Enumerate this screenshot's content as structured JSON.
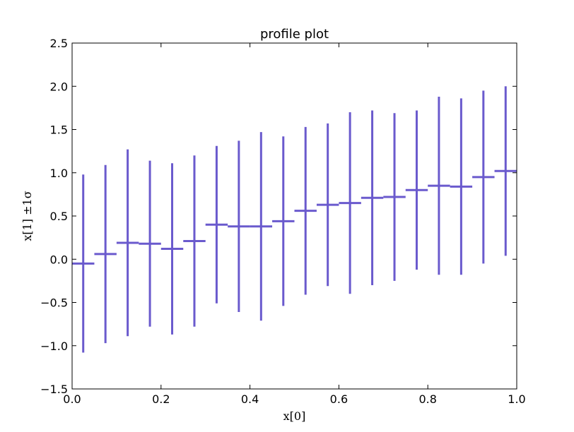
{
  "chart_data": {
    "type": "errorbar",
    "title": "profile plot",
    "xlabel": "x[0]",
    "ylabel": "x[1] ±1σ",
    "xlim": [
      0.0,
      1.0
    ],
    "ylim": [
      -1.5,
      2.5
    ],
    "xticks": [
      "0.0",
      "0.2",
      "0.4",
      "0.6",
      "0.8",
      "1.0"
    ],
    "yticks": [
      "−1.5",
      "−1.0",
      "−0.5",
      "0.0",
      "0.5",
      "1.0",
      "1.5",
      "2.0",
      "2.5"
    ],
    "grid": false,
    "legend": null,
    "color": "#6a5acd",
    "bin_width": 0.05,
    "points": [
      {
        "x": 0.025,
        "y": -0.05,
        "err": 1.03
      },
      {
        "x": 0.075,
        "y": 0.06,
        "err": 1.03
      },
      {
        "x": 0.125,
        "y": 0.19,
        "err": 1.08
      },
      {
        "x": 0.175,
        "y": 0.18,
        "err": 0.96
      },
      {
        "x": 0.225,
        "y": 0.12,
        "err": 0.99
      },
      {
        "x": 0.275,
        "y": 0.21,
        "err": 0.99
      },
      {
        "x": 0.325,
        "y": 0.4,
        "err": 0.91
      },
      {
        "x": 0.375,
        "y": 0.38,
        "err": 0.99
      },
      {
        "x": 0.425,
        "y": 0.38,
        "err": 1.09
      },
      {
        "x": 0.475,
        "y": 0.44,
        "err": 0.98
      },
      {
        "x": 0.525,
        "y": 0.56,
        "err": 0.97
      },
      {
        "x": 0.575,
        "y": 0.63,
        "err": 0.94
      },
      {
        "x": 0.625,
        "y": 0.65,
        "err": 1.05
      },
      {
        "x": 0.675,
        "y": 0.71,
        "err": 1.01
      },
      {
        "x": 0.725,
        "y": 0.72,
        "err": 0.97
      },
      {
        "x": 0.775,
        "y": 0.8,
        "err": 0.92
      },
      {
        "x": 0.825,
        "y": 0.85,
        "err": 1.03
      },
      {
        "x": 0.875,
        "y": 0.84,
        "err": 1.02
      },
      {
        "x": 0.925,
        "y": 0.95,
        "err": 1.0
      },
      {
        "x": 0.975,
        "y": 1.02,
        "err": 0.98
      }
    ]
  }
}
